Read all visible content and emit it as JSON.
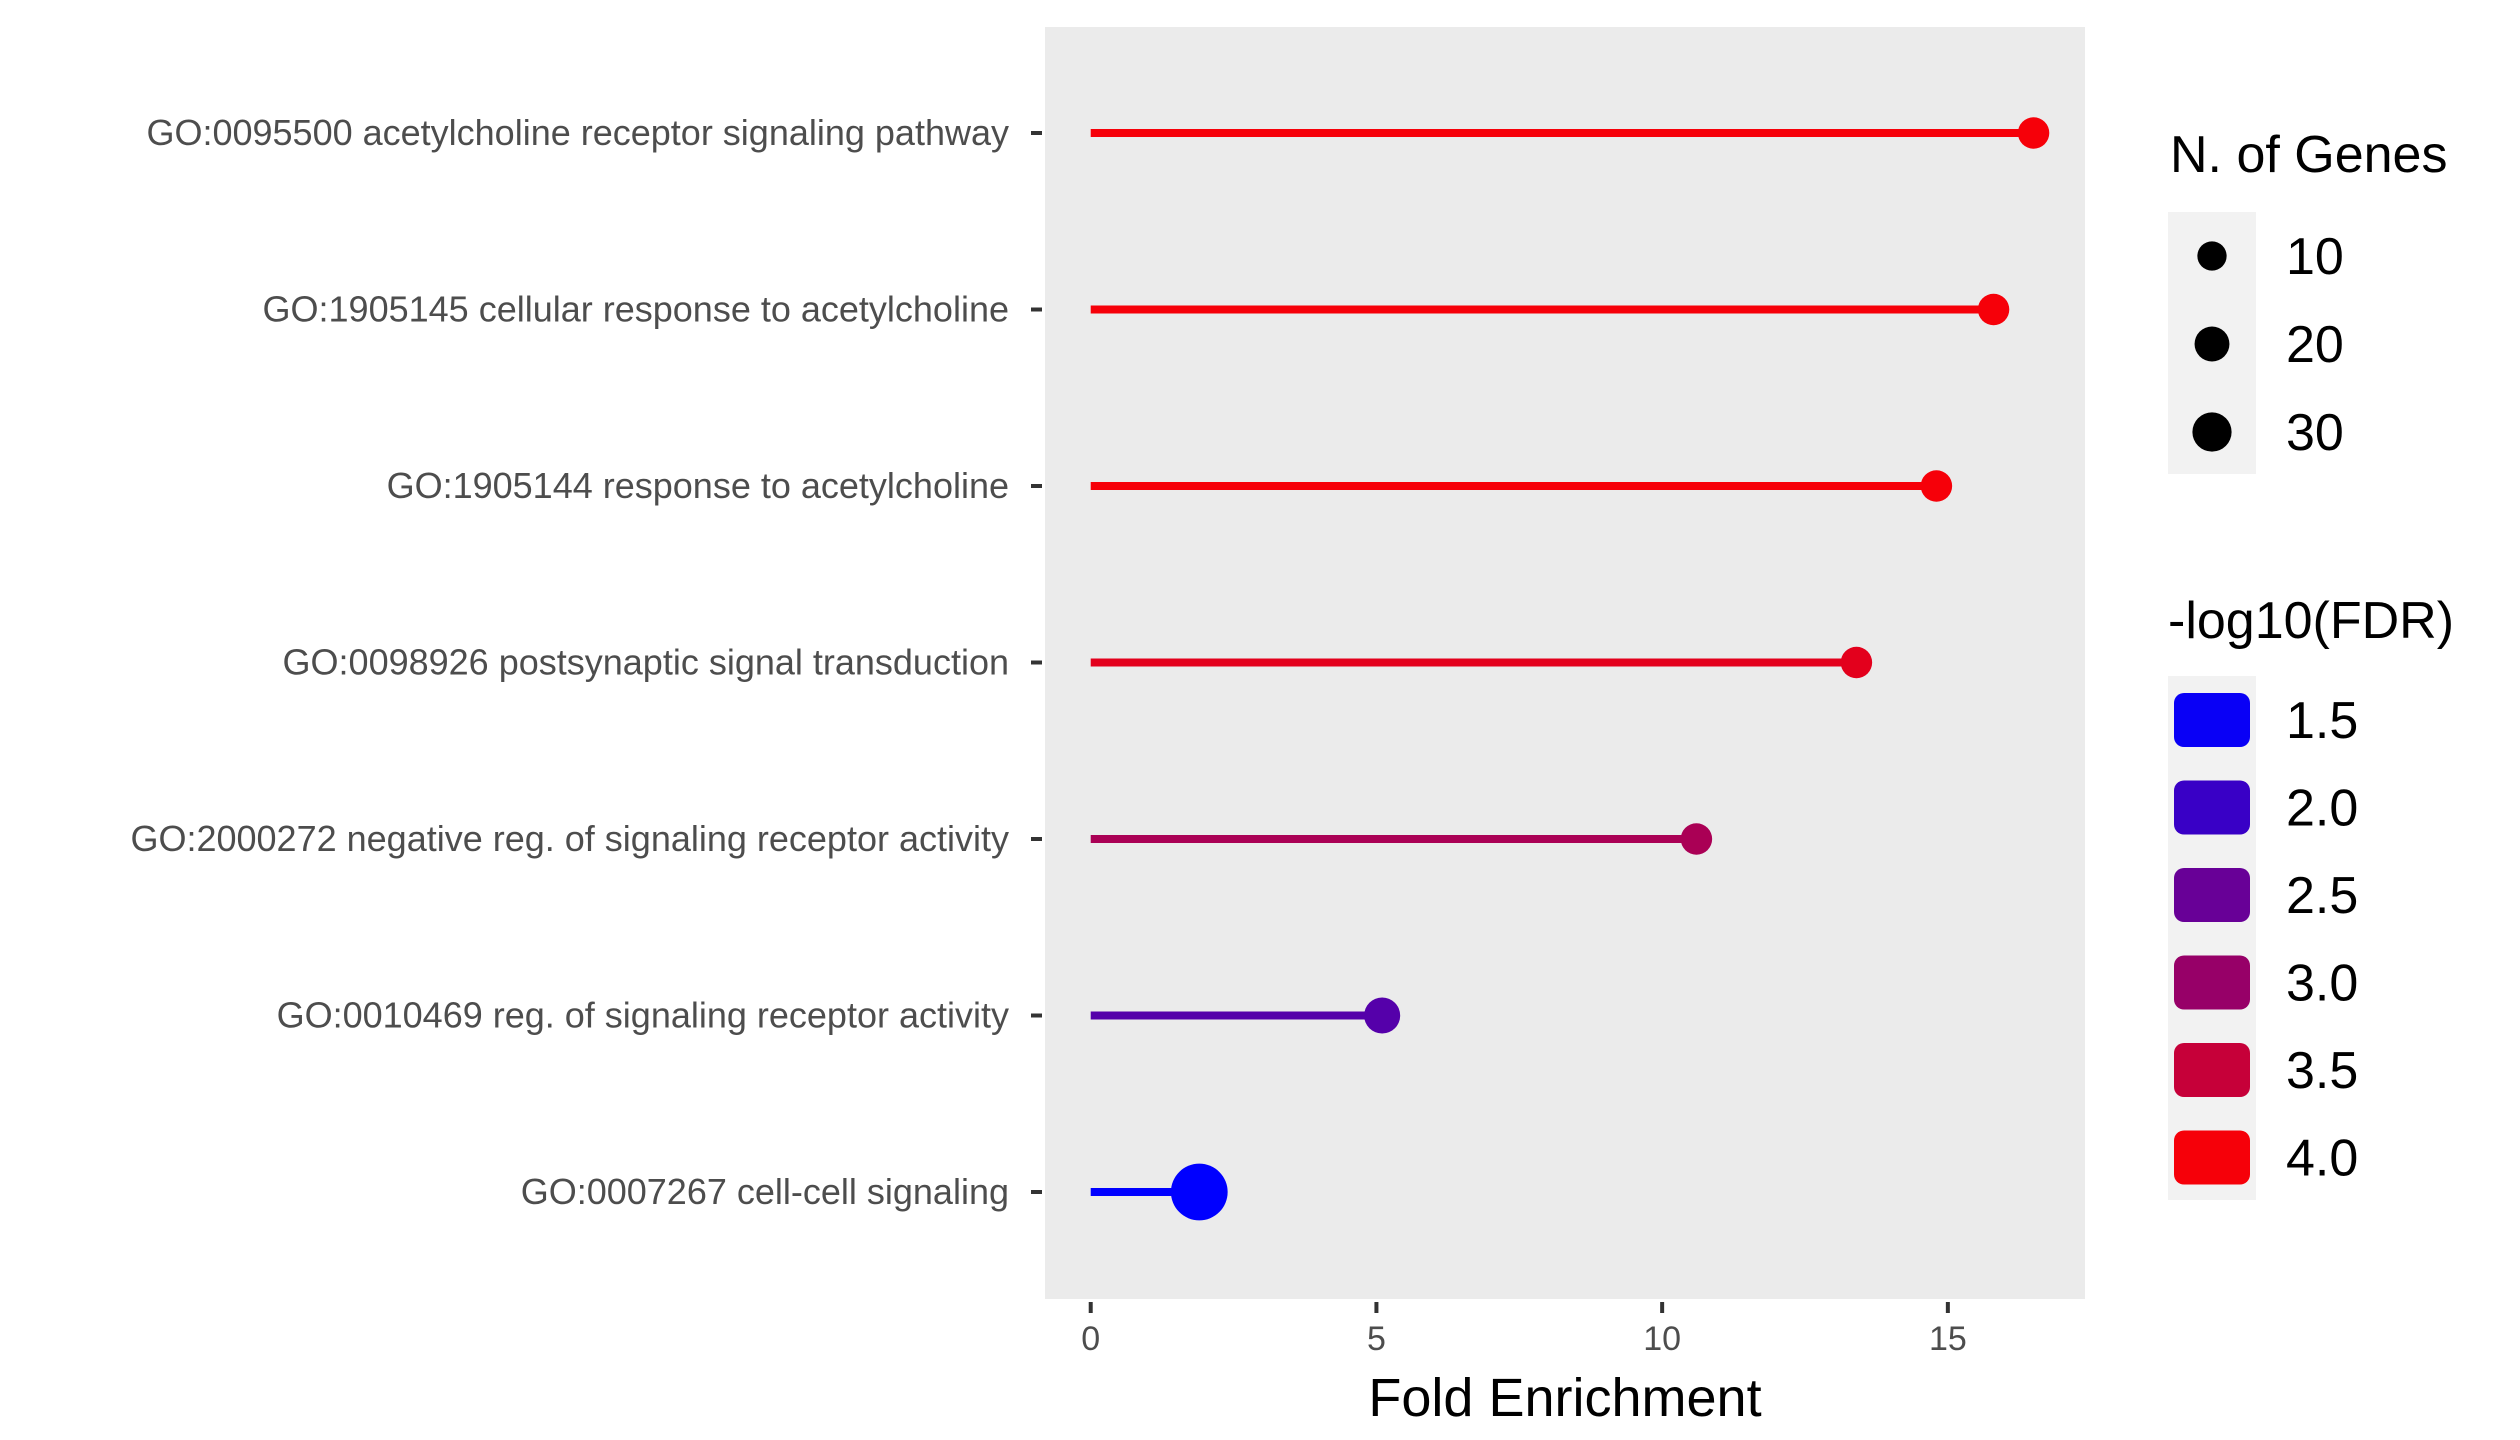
{
  "chart_data": {
    "type": "lollipop",
    "xlabel": "Fold Enrichment",
    "ylabel": "",
    "xlim": [
      -0.8,
      17.4
    ],
    "x_ticks": [
      0,
      5,
      10,
      15
    ],
    "grid": false,
    "categories": [
      "GO:0095500 acetylcholine receptor signaling pathway",
      "GO:1905145 cellular response to acetylcholine",
      "GO:1905144 response to acetylcholine",
      "GO:0098926 postsynaptic signal transduction",
      "GO:2000272 negative reg. of signaling receptor activity",
      "GO:0010469 reg. of signaling receptor activity",
      "GO:0007267 cell-cell signaling"
    ],
    "fold_enrichment": [
      16.5,
      15.8,
      14.8,
      13.4,
      10.6,
      5.1,
      1.9
    ],
    "n_genes": [
      5,
      5,
      5,
      5,
      5,
      8,
      30
    ],
    "neg_log10_fdr": [
      4.0,
      4.0,
      4.0,
      3.8,
      3.2,
      2.3,
      1.4
    ],
    "legend_size": {
      "title": "N. of Genes",
      "values": [
        10,
        20,
        30
      ],
      "labels": [
        "10",
        "20",
        "30"
      ]
    },
    "legend_color": {
      "title": "-log10(FDR)",
      "values": [
        1.5,
        2.0,
        2.5,
        3.0,
        3.5,
        4.0
      ],
      "labels": [
        "1.5",
        "2.0",
        "2.5",
        "3.0",
        "3.5",
        "4.0"
      ],
      "low_color": "#0000ff",
      "high_color": "#ff0000",
      "range": [
        1.4,
        4.1
      ]
    },
    "colors": {
      "panel_background": "#ebebeb",
      "legend_key_background": "#f2f2f2",
      "axis_text": "#4d4d4d",
      "tick": "#333333"
    }
  }
}
